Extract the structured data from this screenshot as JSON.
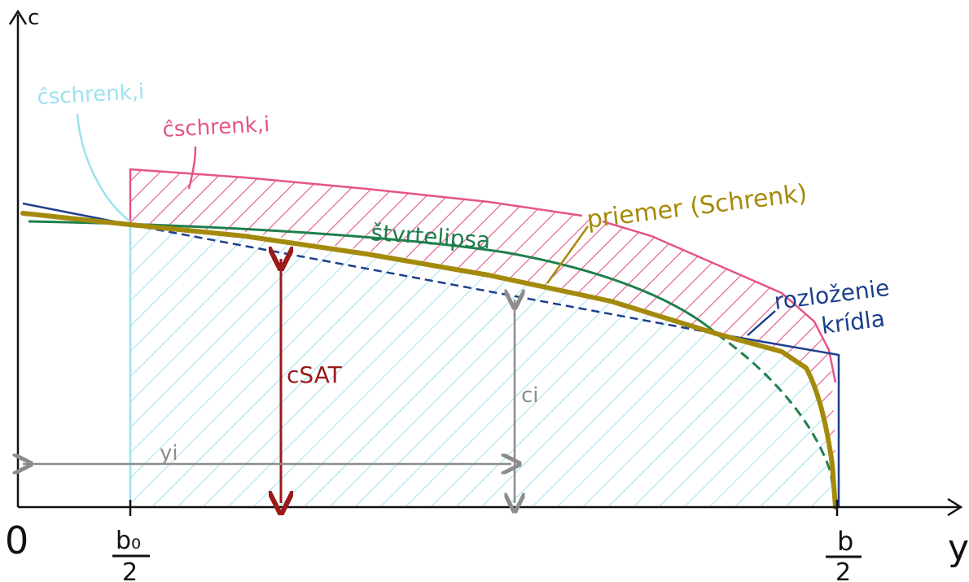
{
  "colors": {
    "axis": "#111111",
    "cyan": "#9ee1ef",
    "pink": "#e45587",
    "green": "#1f7f4c",
    "gold": "#a48a0c",
    "blue": "#1d3f8c",
    "red": "#9a1a1a",
    "gray": "#8c8c8c"
  },
  "axes": {
    "y_axis_label": "c",
    "x_axis_label": "y",
    "origin_label": "0",
    "tick_b0_numerator": "b₀",
    "tick_b0_denominator": "2",
    "tick_b_numerator": "b",
    "tick_b_denominator": "2"
  },
  "labels": {
    "c_schrenk_cyan": "ĉschrenk,i",
    "c_schrenk_pink": "ĉschrenk,i",
    "quarter_ellipse": "štvrtelipsa",
    "mean_schrenk": "priemer (Schrenk)",
    "wing_distribution_line1": "rozloženie",
    "wing_distribution_line2": "krídla",
    "c_sat": "cSAT",
    "c_i": "ci",
    "y_i": "yi"
  }
}
